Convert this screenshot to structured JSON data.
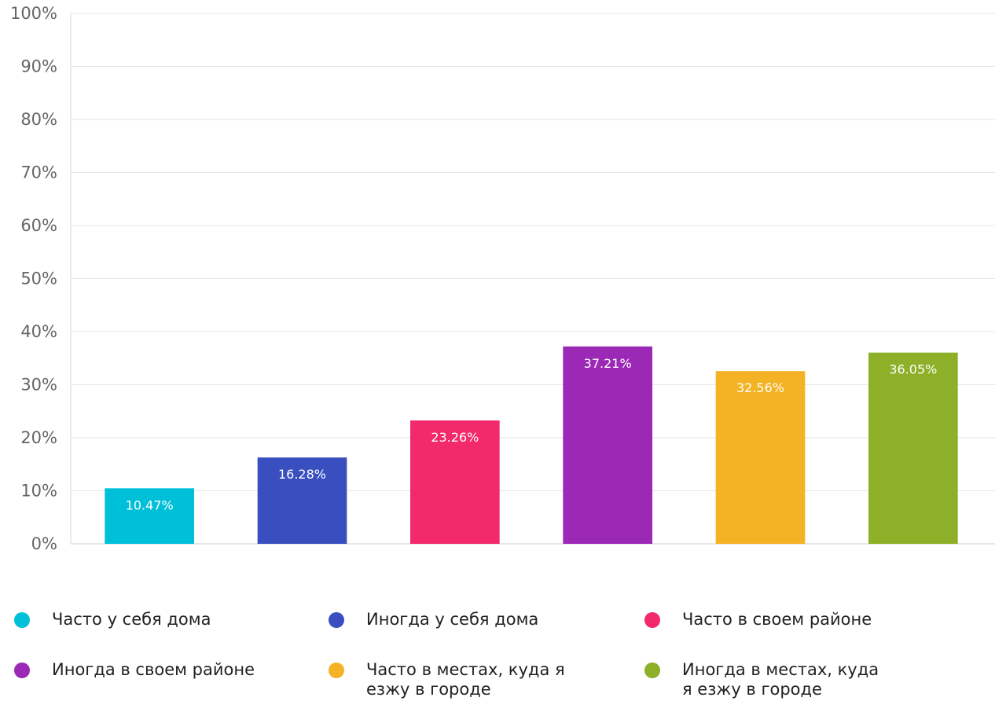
{
  "chart_data": {
    "type": "bar",
    "categories": [
      "Часто у себя дома",
      "Иногда у себя дома",
      "Часто в своем районе",
      "Иногда в своем районе",
      "Часто в местах, куда я езжу в городе",
      "Иногда в местах, куда я езжу в городе"
    ],
    "values": [
      10.47,
      16.28,
      23.26,
      37.21,
      32.56,
      36.05
    ],
    "value_labels": [
      "10.47%",
      "16.28%",
      "23.26%",
      "37.21%",
      "32.56%",
      "36.05%"
    ],
    "colors": [
      "#00C0D9",
      "#3A4FBF",
      "#F2296B",
      "#9B29B6",
      "#F3B324",
      "#8DB028"
    ],
    "ylim": [
      0,
      100
    ],
    "yticks": [
      "0%",
      "10%",
      "20%",
      "30%",
      "40%",
      "50%",
      "60%",
      "70%",
      "80%",
      "90%",
      "100%"
    ],
    "grid": true,
    "legend_position": "bottom",
    "legend": [
      {
        "label_lines": [
          "Часто у себя дома"
        ]
      },
      {
        "label_lines": [
          "Иногда у себя дома"
        ]
      },
      {
        "label_lines": [
          "Часто в своем районе"
        ]
      },
      {
        "label_lines": [
          "Иногда в своем районе"
        ]
      },
      {
        "label_lines": [
          "Часто в местах, куда я",
          "езжу в городе"
        ]
      },
      {
        "label_lines": [
          "Иногда в местах, куда",
          "я езжу в городе"
        ]
      }
    ]
  }
}
